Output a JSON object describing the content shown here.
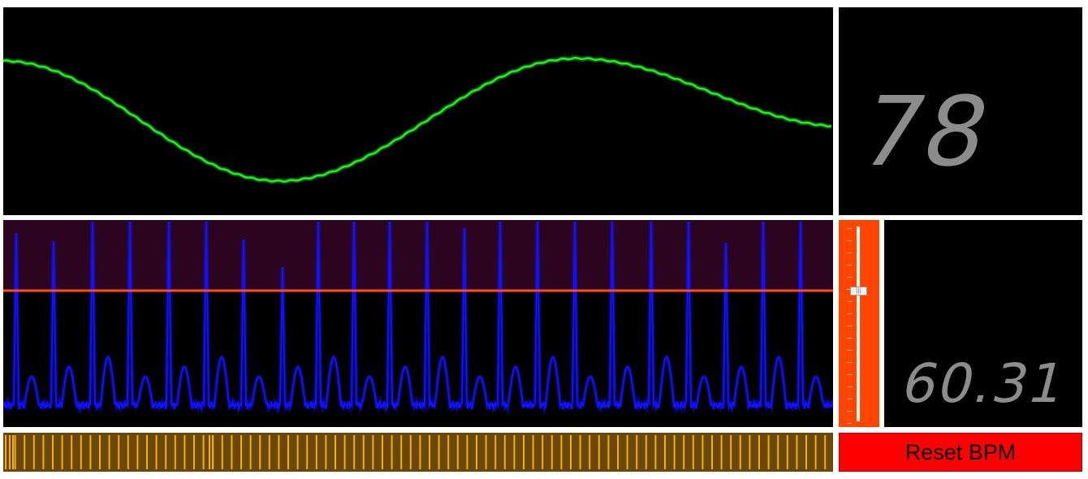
{
  "bpm": {
    "value": "78"
  },
  "ibi": {
    "value": "60.31"
  },
  "reset_button": {
    "label": "Reset BPM"
  },
  "slider": {
    "level": 0.33
  },
  "threshold": {
    "level": 0.34
  },
  "colors": {
    "wave": "#22ee22",
    "pulse": "#1111ff",
    "threshold_line": "#ff4a1a",
    "slider_bg": "#ff4500",
    "reset_bg": "#ff0000",
    "beat_strip_bg": "#6b4708",
    "beat_line": "#f2b200",
    "number_text": "#8c8c8c"
  },
  "icons": {
    "slider_thumb": "grip-icon"
  }
}
